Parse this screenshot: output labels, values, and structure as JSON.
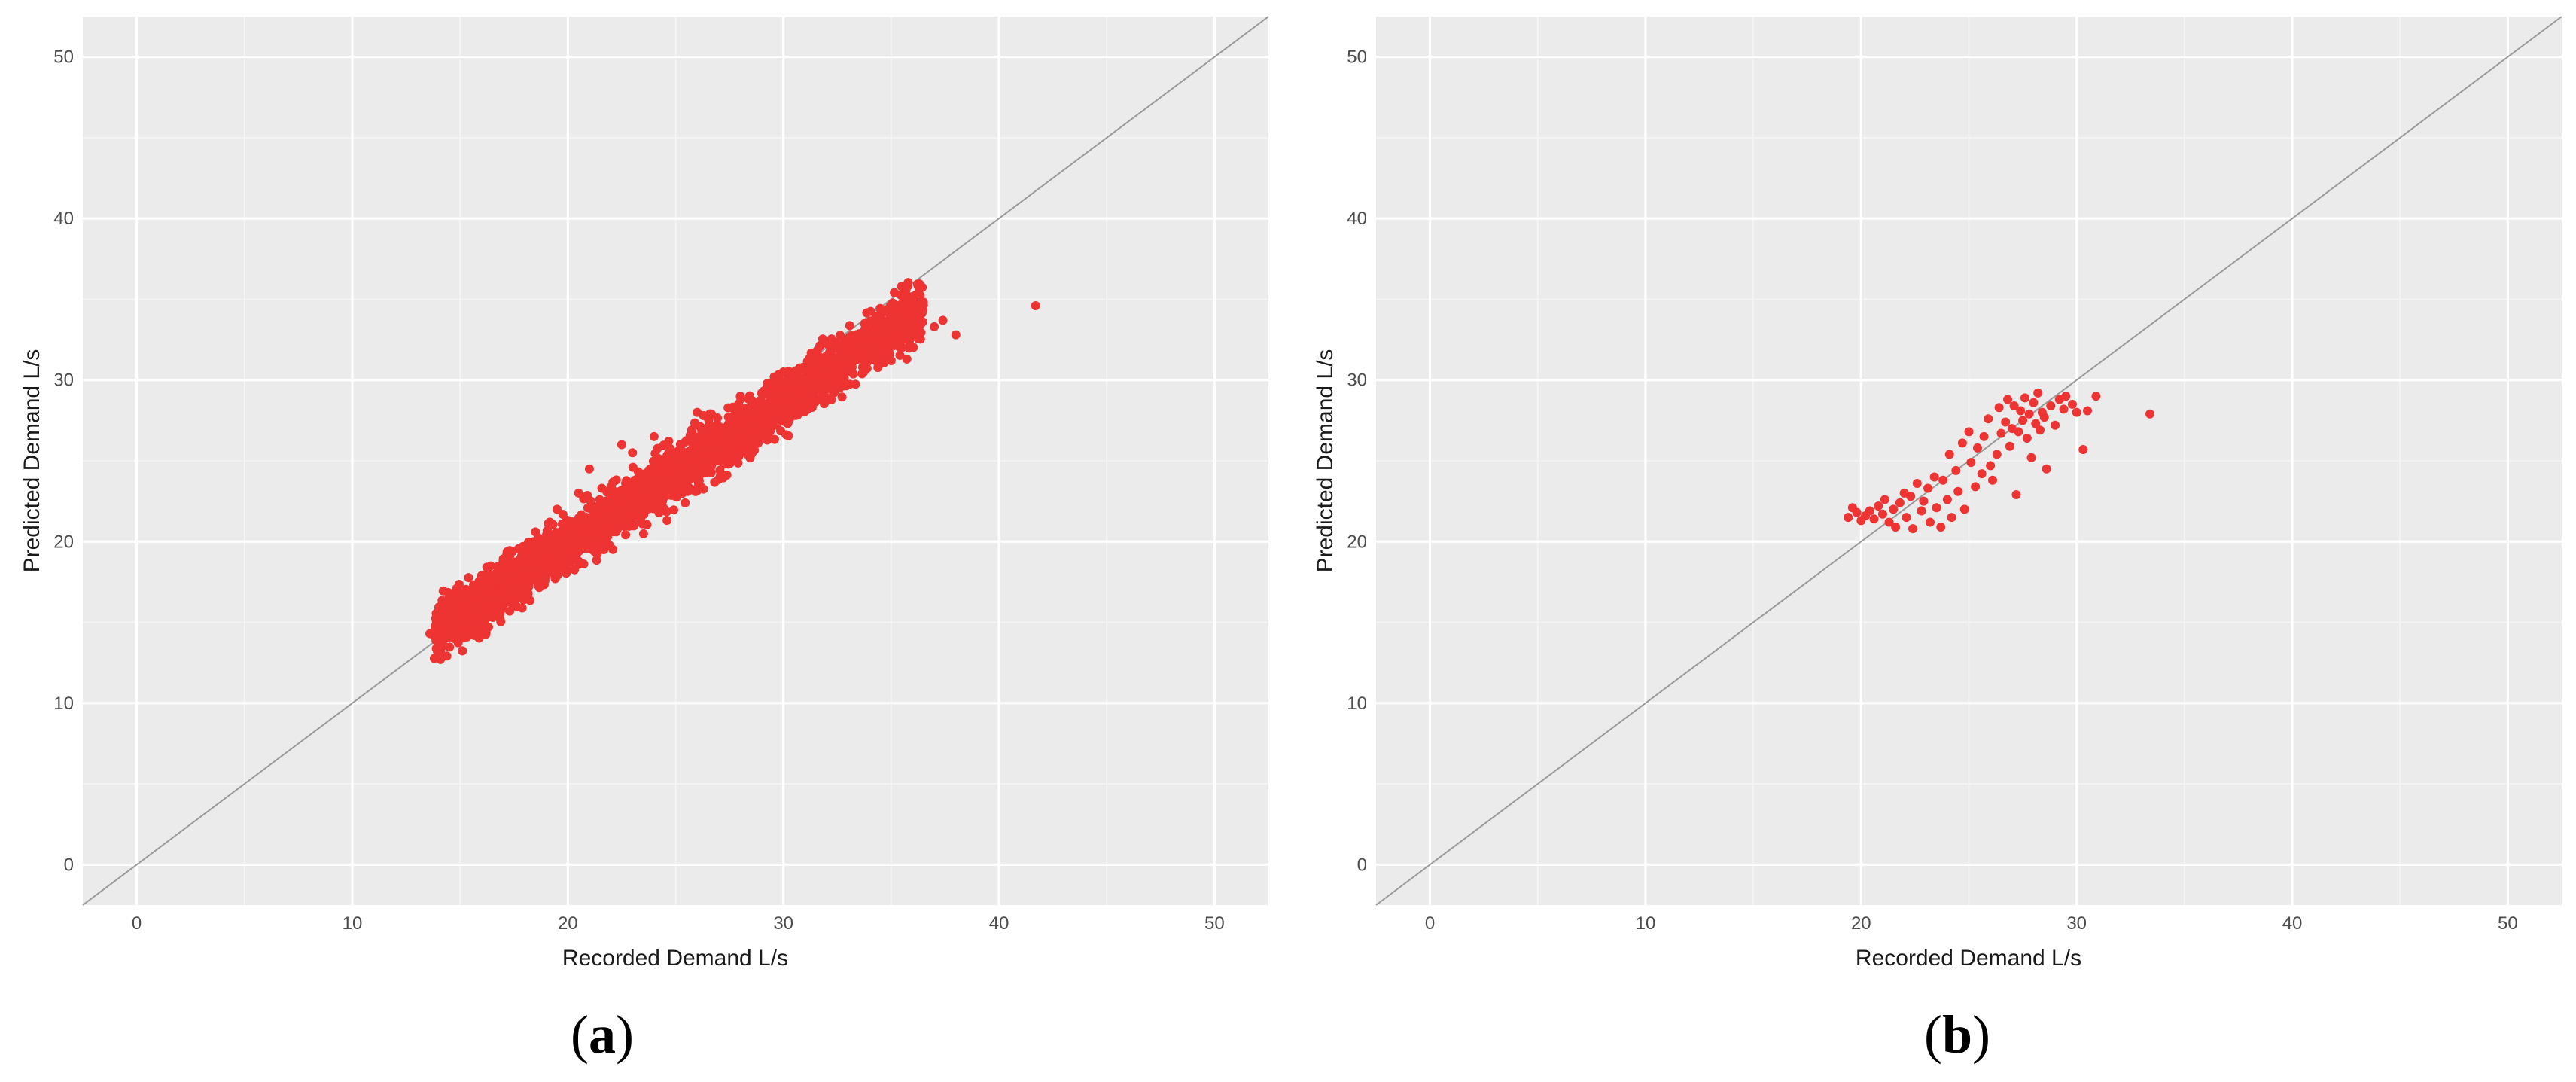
{
  "colors": {
    "panel_background": "#ebebeb",
    "grid": "#ffffff",
    "points": "#ee3333",
    "identity_line": "#9a9a9a",
    "text": "#4d4d4d"
  },
  "chart_data": [
    {
      "panel": "a",
      "type": "scatter",
      "xlabel": "Recorded Demand L/s",
      "ylabel": "Predicted Demand L/s",
      "xlim": [
        -2.5,
        52.5
      ],
      "ylim": [
        -2.5,
        52.5
      ],
      "xticks": [
        "0",
        "10",
        "20",
        "30",
        "40",
        "50"
      ],
      "yticks": [
        "0",
        "10",
        "20",
        "30",
        "40",
        "50"
      ],
      "grid": true,
      "identity_line": true,
      "label_open": "(",
      "label_letter": "a",
      "label_close": ")",
      "cloud": {
        "x_start": 13.8,
        "x_end": 36.5,
        "start_offset": 0.6,
        "slope_extra": -0.12,
        "spread": 0.9,
        "count": 2600,
        "seed": 7
      },
      "points": [
        {
          "x": 13.6,
          "y": 14.3
        },
        {
          "x": 14.0,
          "y": 14.7
        },
        {
          "x": 14.5,
          "y": 15.6
        },
        {
          "x": 15.0,
          "y": 16.3
        },
        {
          "x": 15.5,
          "y": 17.0
        },
        {
          "x": 16.0,
          "y": 17.9
        },
        {
          "x": 16.5,
          "y": 16.2
        },
        {
          "x": 17.0,
          "y": 18.8
        },
        {
          "x": 18.0,
          "y": 17.4
        },
        {
          "x": 18.5,
          "y": 20.6
        },
        {
          "x": 19.5,
          "y": 22.0
        },
        {
          "x": 20.0,
          "y": 19.0
        },
        {
          "x": 20.5,
          "y": 23.0
        },
        {
          "x": 21.0,
          "y": 24.5
        },
        {
          "x": 22.0,
          "y": 21.0
        },
        {
          "x": 22.5,
          "y": 26.0
        },
        {
          "x": 23.0,
          "y": 25.5
        },
        {
          "x": 24.0,
          "y": 26.5
        },
        {
          "x": 25.0,
          "y": 23.5
        },
        {
          "x": 26.0,
          "y": 28.0
        },
        {
          "x": 27.0,
          "y": 26.0
        },
        {
          "x": 28.0,
          "y": 29.0
        },
        {
          "x": 29.0,
          "y": 27.0
        },
        {
          "x": 30.0,
          "y": 30.5
        },
        {
          "x": 31.0,
          "y": 28.8
        },
        {
          "x": 32.0,
          "y": 31.5
        },
        {
          "x": 33.0,
          "y": 32.5
        },
        {
          "x": 34.0,
          "y": 32.0
        },
        {
          "x": 34.5,
          "y": 33.4
        },
        {
          "x": 35.0,
          "y": 31.2
        },
        {
          "x": 35.5,
          "y": 32.8
        },
        {
          "x": 36.2,
          "y": 34.2
        },
        {
          "x": 37.0,
          "y": 33.3
        },
        {
          "x": 37.4,
          "y": 33.7
        },
        {
          "x": 38.0,
          "y": 32.8
        },
        {
          "x": 41.7,
          "y": 34.6
        }
      ]
    },
    {
      "panel": "b",
      "type": "scatter",
      "xlabel": "Recorded Demand L/s",
      "ylabel": "Predicted Demand L/s",
      "xlim": [
        -2.5,
        52.5
      ],
      "ylim": [
        -2.5,
        52.5
      ],
      "xticks": [
        "0",
        "10",
        "20",
        "30",
        "40",
        "50"
      ],
      "yticks": [
        "0",
        "10",
        "20",
        "30",
        "40",
        "50"
      ],
      "grid": true,
      "identity_line": true,
      "label_open": "(",
      "label_letter": "b",
      "label_close": ")",
      "points": [
        {
          "x": 19.4,
          "y": 21.5
        },
        {
          "x": 19.6,
          "y": 22.1
        },
        {
          "x": 19.8,
          "y": 21.8
        },
        {
          "x": 20.0,
          "y": 21.3
        },
        {
          "x": 20.2,
          "y": 21.6
        },
        {
          "x": 20.4,
          "y": 21.9
        },
        {
          "x": 20.6,
          "y": 21.4
        },
        {
          "x": 20.8,
          "y": 22.2
        },
        {
          "x": 21.0,
          "y": 21.7
        },
        {
          "x": 21.1,
          "y": 22.6
        },
        {
          "x": 21.3,
          "y": 21.2
        },
        {
          "x": 21.5,
          "y": 22.0
        },
        {
          "x": 21.6,
          "y": 20.9
        },
        {
          "x": 21.8,
          "y": 22.4
        },
        {
          "x": 22.0,
          "y": 23.0
        },
        {
          "x": 22.1,
          "y": 21.5
        },
        {
          "x": 22.3,
          "y": 22.8
        },
        {
          "x": 22.4,
          "y": 20.8
        },
        {
          "x": 22.6,
          "y": 23.6
        },
        {
          "x": 22.8,
          "y": 21.9
        },
        {
          "x": 22.9,
          "y": 22.5
        },
        {
          "x": 23.1,
          "y": 23.3
        },
        {
          "x": 23.2,
          "y": 21.2
        },
        {
          "x": 23.4,
          "y": 24.0
        },
        {
          "x": 23.5,
          "y": 22.1
        },
        {
          "x": 23.7,
          "y": 20.9
        },
        {
          "x": 23.8,
          "y": 23.8
        },
        {
          "x": 24.0,
          "y": 22.6
        },
        {
          "x": 24.1,
          "y": 25.4
        },
        {
          "x": 24.2,
          "y": 21.5
        },
        {
          "x": 24.4,
          "y": 24.4
        },
        {
          "x": 24.5,
          "y": 23.1
        },
        {
          "x": 24.7,
          "y": 26.1
        },
        {
          "x": 24.8,
          "y": 22.0
        },
        {
          "x": 25.0,
          "y": 26.8
        },
        {
          "x": 25.1,
          "y": 24.9
        },
        {
          "x": 25.3,
          "y": 23.4
        },
        {
          "x": 25.4,
          "y": 25.8
        },
        {
          "x": 25.6,
          "y": 24.2
        },
        {
          "x": 25.7,
          "y": 26.5
        },
        {
          "x": 25.9,
          "y": 27.6
        },
        {
          "x": 26.0,
          "y": 24.7
        },
        {
          "x": 26.1,
          "y": 23.8
        },
        {
          "x": 26.3,
          "y": 25.4
        },
        {
          "x": 26.4,
          "y": 28.3
        },
        {
          "x": 26.5,
          "y": 26.7
        },
        {
          "x": 26.7,
          "y": 27.4
        },
        {
          "x": 26.8,
          "y": 28.8
        },
        {
          "x": 26.9,
          "y": 25.9
        },
        {
          "x": 27.0,
          "y": 27.0
        },
        {
          "x": 27.1,
          "y": 28.4
        },
        {
          "x": 27.2,
          "y": 22.9
        },
        {
          "x": 27.3,
          "y": 26.8
        },
        {
          "x": 27.4,
          "y": 28.1
        },
        {
          "x": 27.5,
          "y": 27.5
        },
        {
          "x": 27.6,
          "y": 28.9
        },
        {
          "x": 27.7,
          "y": 26.4
        },
        {
          "x": 27.8,
          "y": 27.9
        },
        {
          "x": 27.9,
          "y": 25.2
        },
        {
          "x": 28.0,
          "y": 28.6
        },
        {
          "x": 28.1,
          "y": 27.3
        },
        {
          "x": 28.2,
          "y": 29.2
        },
        {
          "x": 28.3,
          "y": 26.9
        },
        {
          "x": 28.4,
          "y": 28.0
        },
        {
          "x": 28.5,
          "y": 27.7
        },
        {
          "x": 28.6,
          "y": 24.5
        },
        {
          "x": 28.8,
          "y": 28.4
        },
        {
          "x": 29.0,
          "y": 27.2
        },
        {
          "x": 29.2,
          "y": 28.8
        },
        {
          "x": 29.4,
          "y": 28.2
        },
        {
          "x": 29.5,
          "y": 29.0
        },
        {
          "x": 29.8,
          "y": 28.5
        },
        {
          "x": 30.0,
          "y": 28.0
        },
        {
          "x": 30.3,
          "y": 25.7
        },
        {
          "x": 30.5,
          "y": 28.1
        },
        {
          "x": 30.9,
          "y": 29.0
        },
        {
          "x": 33.4,
          "y": 27.9
        }
      ]
    }
  ]
}
